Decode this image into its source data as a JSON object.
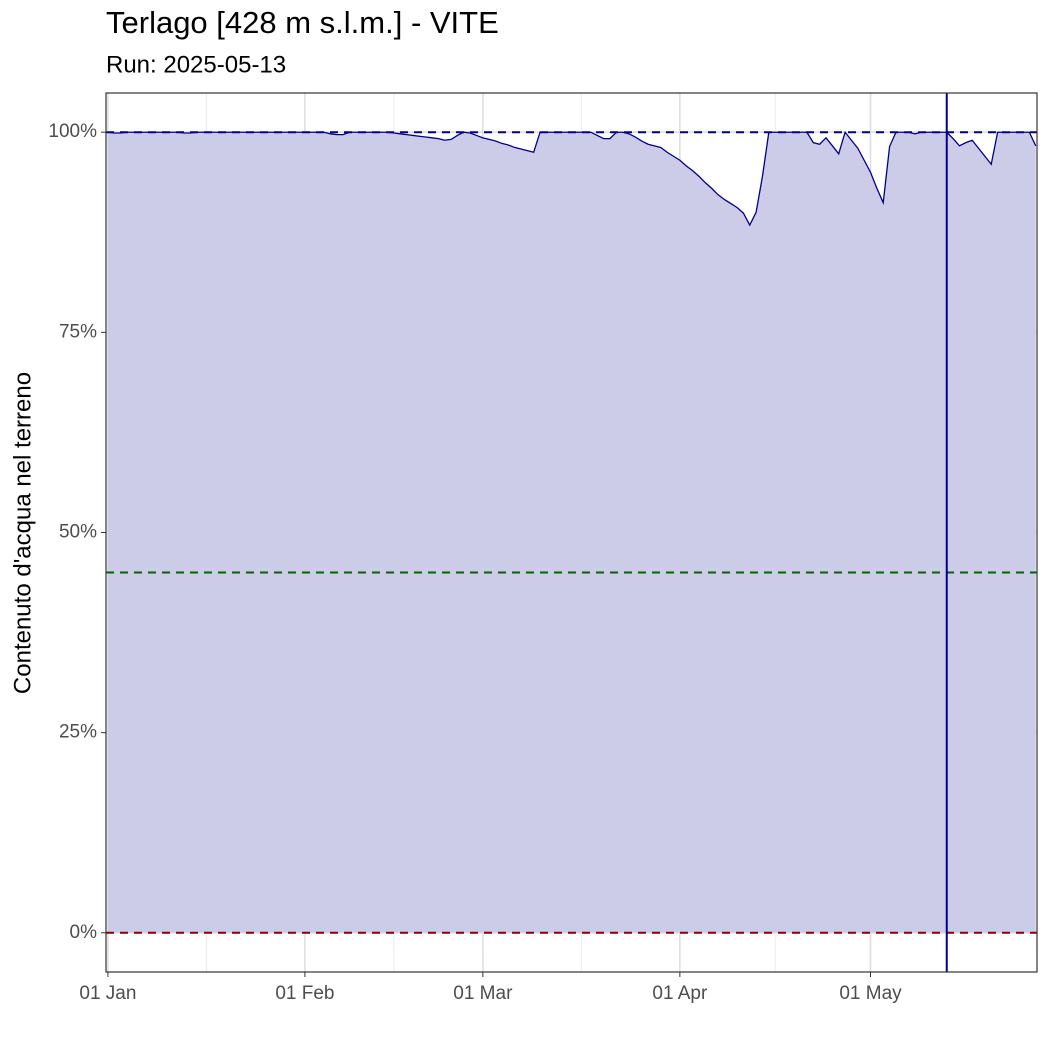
{
  "chart_data": {
    "type": "area",
    "title": "Terlago [428 m s.l.m.] - VITE",
    "subtitle": "Run: 2025-05-13",
    "y_label": "Contenuto d'acqua nel terreno",
    "x": [
      0,
      1,
      2,
      3,
      4,
      5,
      6,
      7,
      8,
      9,
      10,
      11,
      12,
      13,
      14,
      15,
      16,
      17,
      18,
      19,
      20,
      21,
      22,
      23,
      24,
      25,
      26,
      27,
      28,
      29,
      30,
      31,
      32,
      33,
      34,
      35,
      36,
      37,
      38,
      39,
      40,
      41,
      42,
      43,
      44,
      45,
      46,
      47,
      48,
      49,
      50,
      51,
      52,
      53,
      54,
      55,
      56,
      57,
      58,
      59,
      60,
      61,
      62,
      63,
      64,
      65,
      66,
      67,
      68,
      69,
      70,
      71,
      72,
      73,
      74,
      75,
      76,
      77,
      78,
      79,
      80,
      81,
      82,
      83,
      84,
      85,
      86,
      87,
      88,
      89,
      90,
      91,
      92,
      93,
      94,
      95,
      96,
      97,
      98,
      99,
      100,
      101,
      102,
      103,
      104,
      105,
      106,
      107,
      108,
      109,
      110,
      111,
      112,
      113,
      114,
      115,
      116,
      117,
      118,
      119,
      120,
      121,
      122,
      123,
      124,
      125,
      126,
      127,
      128,
      129,
      130,
      131,
      132,
      133,
      134,
      135,
      136,
      137,
      138,
      139,
      140,
      141,
      142,
      143,
      144,
      145,
      146
    ],
    "series": [
      {
        "color": "#00008b",
        "fill": "#cccce8",
        "values": [
          100,
          99.9,
          99.9,
          100,
          100,
          100,
          100,
          100,
          100,
          100,
          100,
          100,
          99.9,
          99.9,
          100,
          100,
          100,
          100,
          100,
          100,
          100,
          100,
          100,
          100,
          100,
          100,
          100,
          100,
          100,
          100,
          100,
          100,
          100,
          100,
          100,
          99.8,
          99.7,
          99.7,
          100,
          100,
          100,
          100,
          100,
          100,
          100,
          99.9,
          99.8,
          99.7,
          99.6,
          99.5,
          99.4,
          99.3,
          99.2,
          99.0,
          99.1,
          99.6,
          100,
          99.9,
          99.6,
          99.3,
          99.1,
          98.9,
          98.6,
          98.4,
          98.1,
          97.9,
          97.7,
          97.5,
          100,
          100,
          100,
          100,
          100,
          100,
          100,
          100,
          100,
          99.6,
          99.2,
          99.2,
          100,
          100,
          99.8,
          99.4,
          98.9,
          98.5,
          98.3,
          98.1,
          97.5,
          97.0,
          96.5,
          95.8,
          95.2,
          94.5,
          93.7,
          93.0,
          92.2,
          91.6,
          91.1,
          90.6,
          89.9,
          88.4,
          90.0,
          94.5,
          100,
          100,
          100,
          100,
          100,
          100,
          100,
          98.7,
          98.5,
          99.3,
          98.3,
          97.3,
          100,
          99.0,
          98.0,
          96.5,
          95.0,
          93.0,
          91.2,
          98.2,
          100,
          100,
          100,
          99.8,
          100,
          100,
          100,
          100,
          100,
          99.2,
          98.3,
          98.7,
          99.0,
          98.0,
          97.0,
          96.0,
          100,
          100,
          100,
          100,
          100,
          100,
          98.3
        ]
      }
    ],
    "xlim": [
      -0.3,
      146.2
    ],
    "xticks": [
      {
        "value": 0,
        "label": "01 Jan"
      },
      {
        "value": 31,
        "label": "01 Feb"
      },
      {
        "value": 59,
        "label": "01 Mar"
      },
      {
        "value": 90,
        "label": "01 Apr"
      },
      {
        "value": 120,
        "label": "01 May"
      }
    ],
    "ylim": [
      -4.9,
      104.9
    ],
    "yticks": [
      {
        "value": 0,
        "label": "0%"
      },
      {
        "value": 25,
        "label": "25%"
      },
      {
        "value": 50,
        "label": "50%"
      },
      {
        "value": 75,
        "label": "75%"
      },
      {
        "value": 100,
        "label": "100%"
      }
    ],
    "hlines": [
      {
        "y": 100,
        "color": "#00008b"
      },
      {
        "y": 45,
        "color": "#006400"
      },
      {
        "y": 0,
        "color": "#8b0000"
      }
    ],
    "vline": {
      "x": 132,
      "color": "#00008b"
    },
    "grid": true
  }
}
